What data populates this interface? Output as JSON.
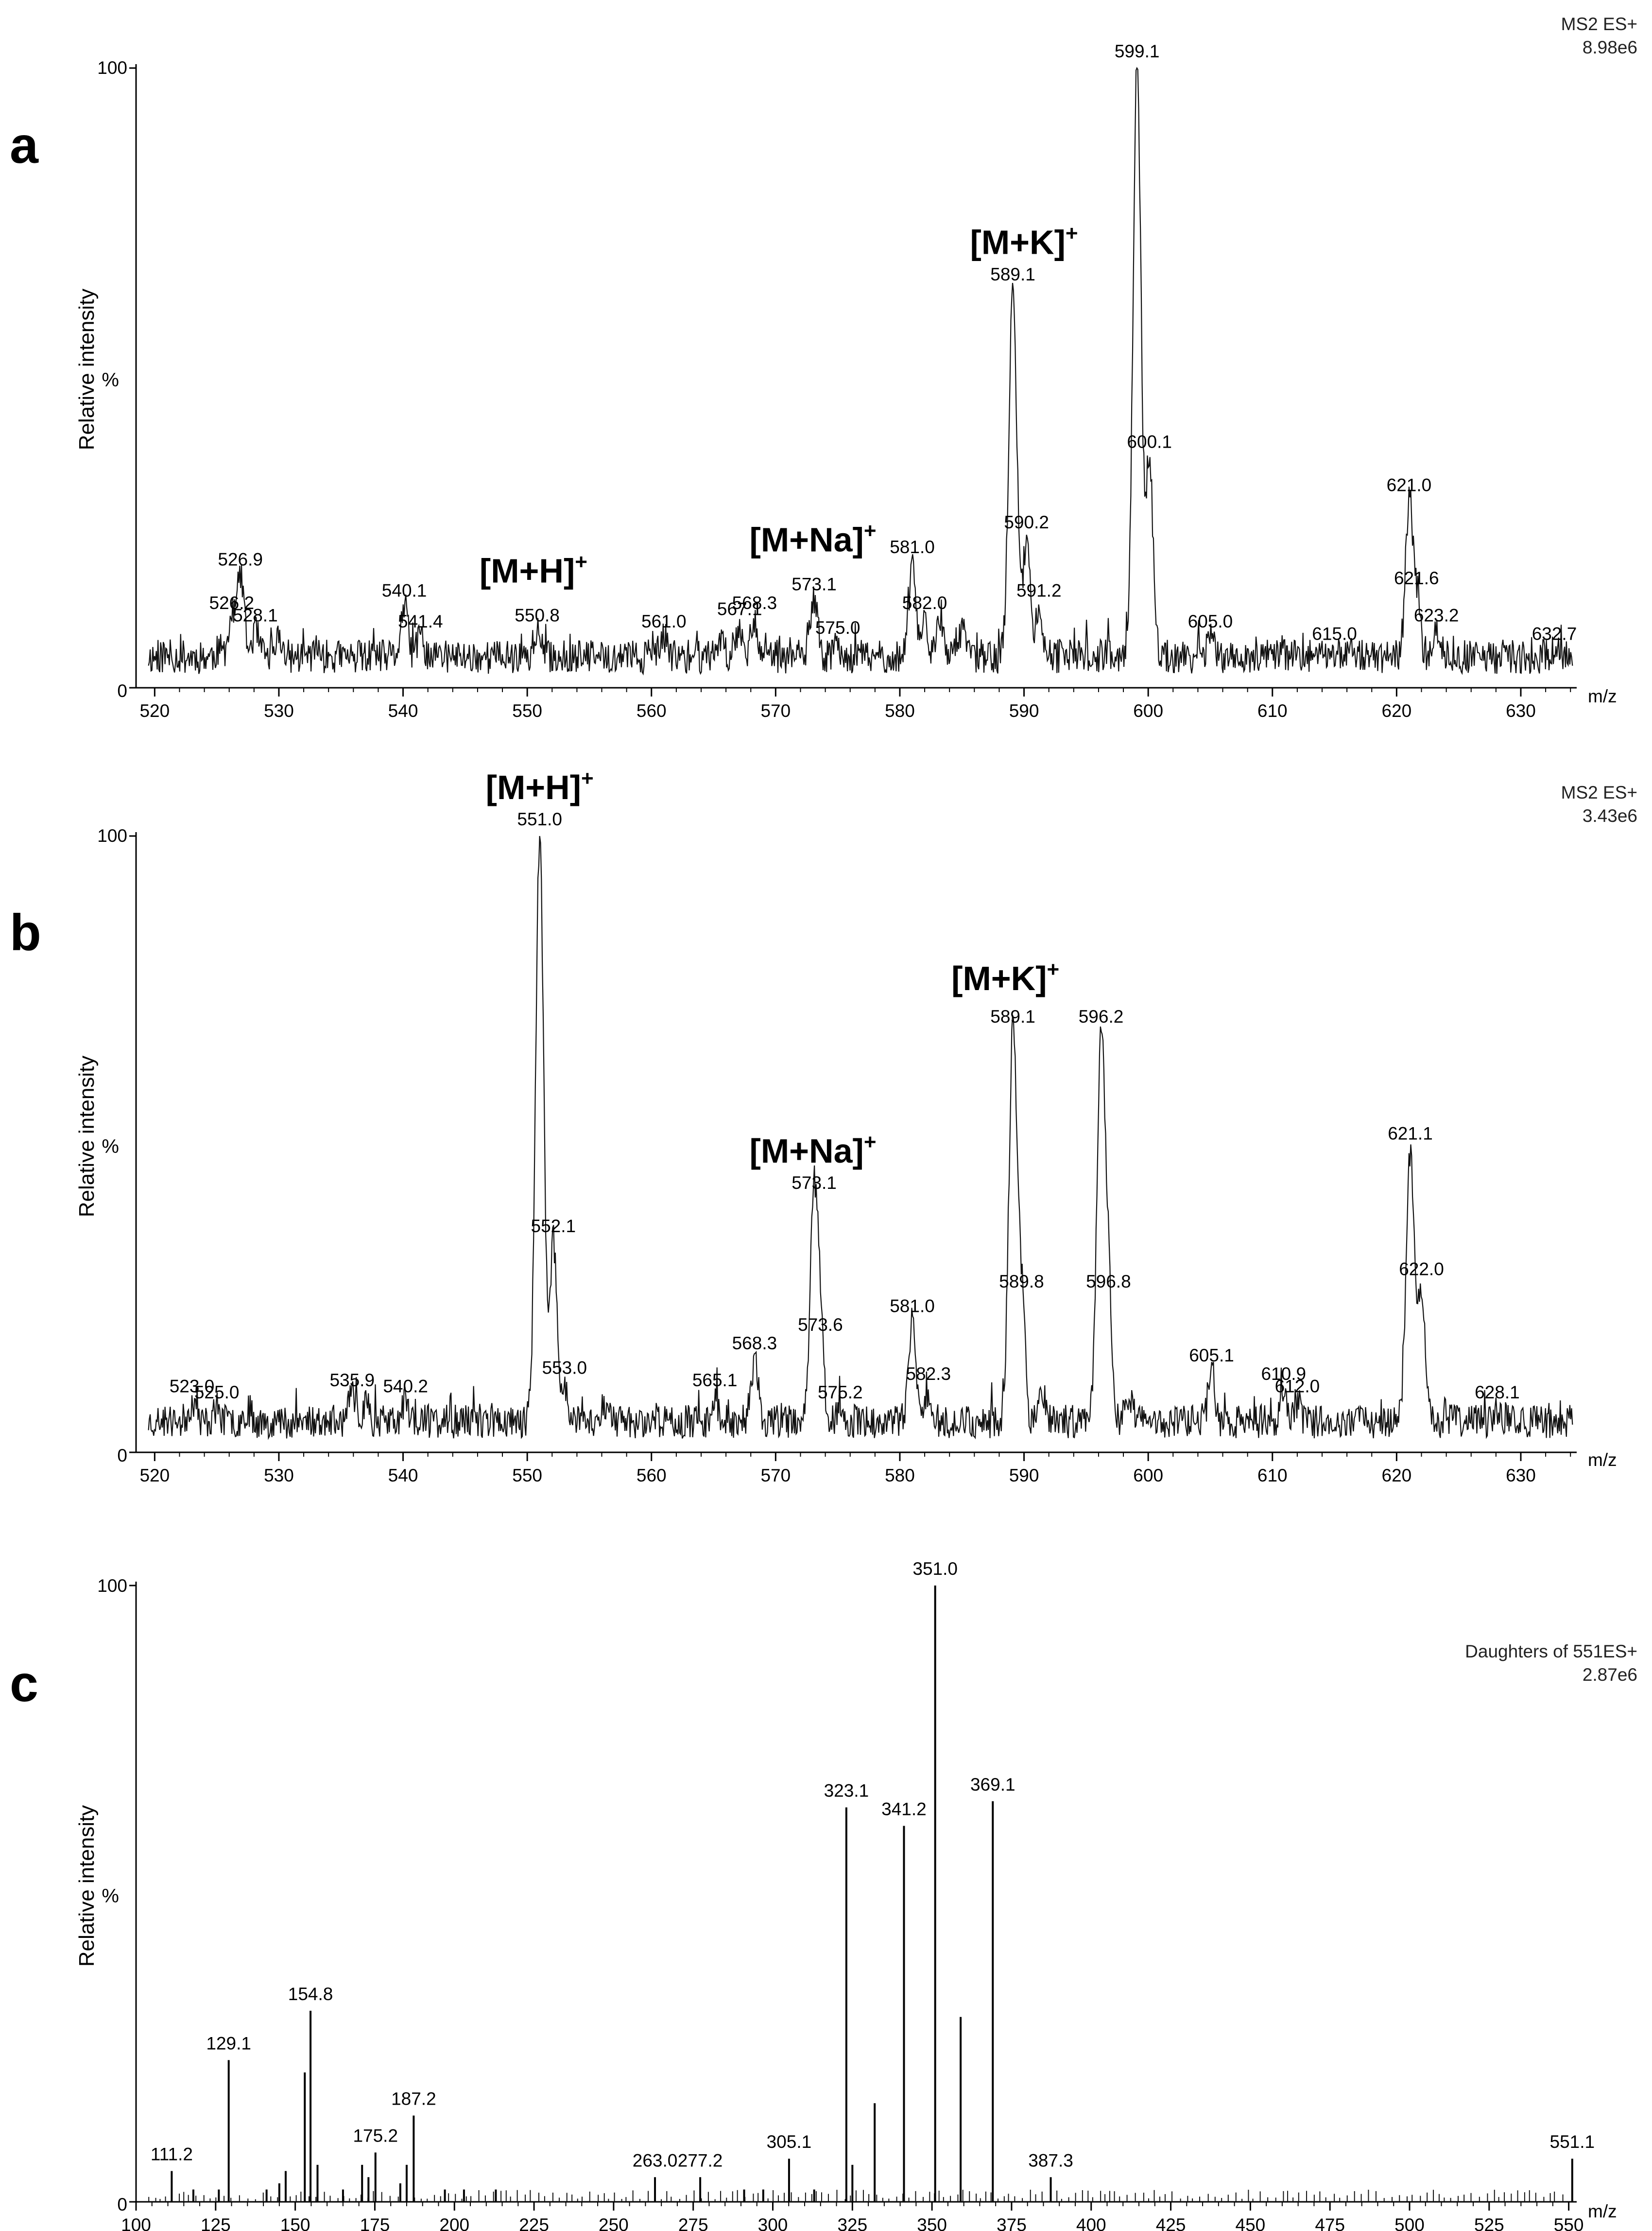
{
  "chart_data": [
    {
      "type": "line",
      "panel": "a",
      "ylabel": "Relative intensity",
      "y_unit": "%",
      "xlabel": "m/z",
      "header_line1": "MS2 ES+",
      "header_line2": "8.98e6",
      "xlim": [
        518.5,
        634.5
      ],
      "ylim": [
        0,
        100
      ],
      "y_ticks": [
        "0",
        "100"
      ],
      "x_ticks": [
        "520",
        "530",
        "540",
        "550",
        "560",
        "570",
        "580",
        "590",
        "600",
        "610",
        "620",
        "630"
      ],
      "baseline": 5,
      "peaks": [
        {
          "x": 525.2,
          "y": 6
        },
        {
          "x": 526.2,
          "y": 11,
          "label": "526.2"
        },
        {
          "x": 526.9,
          "y": 18,
          "label": "526.9"
        },
        {
          "x": 528.1,
          "y": 9,
          "label": "528.1"
        },
        {
          "x": 530.0,
          "y": 8
        },
        {
          "x": 533.0,
          "y": 6
        },
        {
          "x": 540.1,
          "y": 13,
          "label": "540.1"
        },
        {
          "x": 541.4,
          "y": 8,
          "label": "541.4"
        },
        {
          "x": 550.8,
          "y": 9,
          "label": "550.8"
        },
        {
          "x": 561.0,
          "y": 8,
          "label": "561.0"
        },
        {
          "x": 565.5,
          "y": 8
        },
        {
          "x": 567.1,
          "y": 10,
          "label": "567.1"
        },
        {
          "x": 568.3,
          "y": 11,
          "label": "568.3"
        },
        {
          "x": 573.1,
          "y": 14,
          "label": "573.1"
        },
        {
          "x": 575.0,
          "y": 7,
          "label": "575.0"
        },
        {
          "x": 581.0,
          "y": 20,
          "label": "581.0"
        },
        {
          "x": 582.0,
          "y": 11,
          "label": "582.0"
        },
        {
          "x": 583.2,
          "y": 10
        },
        {
          "x": 585.0,
          "y": 9
        },
        {
          "x": 589.1,
          "y": 64,
          "label": "589.1"
        },
        {
          "x": 590.2,
          "y": 24,
          "label": "590.2"
        },
        {
          "x": 591.2,
          "y": 13,
          "label": "591.2"
        },
        {
          "x": 599.1,
          "y": 100,
          "label": "599.1"
        },
        {
          "x": 600.1,
          "y": 37,
          "label": "600.1"
        },
        {
          "x": 605.0,
          "y": 8,
          "label": "605.0"
        },
        {
          "x": 615.0,
          "y": 6,
          "label": "615.0"
        },
        {
          "x": 616.5,
          "y": 6
        },
        {
          "x": 621.0,
          "y": 30,
          "label": "621.0"
        },
        {
          "x": 621.6,
          "y": 15,
          "label": "621.6"
        },
        {
          "x": 623.2,
          "y": 9,
          "label": "623.2"
        },
        {
          "x": 632.7,
          "y": 6,
          "label": "632.7"
        }
      ],
      "ion_annotations": [
        {
          "text": "[M+H]",
          "sup": "+",
          "x": 550.5,
          "y": 17
        },
        {
          "text": "[M+Na]",
          "sup": "+",
          "x": 573.0,
          "y": 22
        },
        {
          "text": "[M+K]",
          "sup": "+",
          "x": 590.0,
          "y": 70
        }
      ]
    },
    {
      "type": "line",
      "panel": "b",
      "ylabel": "Relative intensity",
      "y_unit": "%",
      "xlabel": "m/z",
      "header_line1": "MS2 ES+",
      "header_line2": "3.43e6",
      "xlim": [
        518.5,
        634.5
      ],
      "ylim": [
        0,
        100
      ],
      "y_ticks": [
        "0",
        "100"
      ],
      "x_ticks": [
        "520",
        "530",
        "540",
        "550",
        "560",
        "570",
        "580",
        "590",
        "600",
        "610",
        "620",
        "630"
      ],
      "baseline": 5,
      "peaks": [
        {
          "x": 523.0,
          "y": 8,
          "label": "523.0"
        },
        {
          "x": 525.0,
          "y": 7,
          "label": "525.0"
        },
        {
          "x": 527.5,
          "y": 7
        },
        {
          "x": 535.9,
          "y": 9,
          "label": "535.9"
        },
        {
          "x": 537.0,
          "y": 8
        },
        {
          "x": 540.2,
          "y": 8,
          "label": "540.2"
        },
        {
          "x": 551.0,
          "y": 100,
          "label": "551.0"
        },
        {
          "x": 552.1,
          "y": 34,
          "label": "552.1"
        },
        {
          "x": 553.0,
          "y": 11,
          "label": "553.0"
        },
        {
          "x": 556.2,
          "y": 8
        },
        {
          "x": 565.1,
          "y": 9,
          "label": "565.1"
        },
        {
          "x": 568.3,
          "y": 15,
          "label": "568.3"
        },
        {
          "x": 573.1,
          "y": 41,
          "label": "573.1"
        },
        {
          "x": 573.6,
          "y": 18,
          "label": "573.6"
        },
        {
          "x": 575.2,
          "y": 7,
          "label": "575.2"
        },
        {
          "x": 581.0,
          "y": 21,
          "label": "581.0"
        },
        {
          "x": 582.3,
          "y": 10,
          "label": "582.3"
        },
        {
          "x": 589.1,
          "y": 68,
          "label": "589.1"
        },
        {
          "x": 589.8,
          "y": 25,
          "label": "589.8"
        },
        {
          "x": 591.5,
          "y": 10
        },
        {
          "x": 596.2,
          "y": 68,
          "label": "596.2"
        },
        {
          "x": 596.8,
          "y": 25,
          "label": "596.8"
        },
        {
          "x": 598.5,
          "y": 9
        },
        {
          "x": 605.1,
          "y": 13,
          "label": "605.1"
        },
        {
          "x": 610.9,
          "y": 10,
          "label": "610.9"
        },
        {
          "x": 612.0,
          "y": 8,
          "label": "612.0"
        },
        {
          "x": 621.1,
          "y": 49,
          "label": "621.1"
        },
        {
          "x": 622.0,
          "y": 27,
          "label": "622.0"
        },
        {
          "x": 628.1,
          "y": 7,
          "label": "628.1"
        }
      ],
      "ion_annotations": [
        {
          "text": "[M+H]",
          "sup": "+",
          "x": 551.0,
          "y": 106
        },
        {
          "text": "[M+Na]",
          "sup": "+",
          "x": 573.0,
          "y": 47
        },
        {
          "text": "[M+K]",
          "sup": "+",
          "x": 588.5,
          "y": 75
        }
      ]
    },
    {
      "type": "bar",
      "panel": "c",
      "ylabel": "Relative intensity",
      "y_unit": "%",
      "xlabel": "m/z",
      "header_line1": "Daughters of 551ES+",
      "header_line2": "2.87e6",
      "xlim": [
        100,
        552.5
      ],
      "ylim": [
        0,
        100
      ],
      "y_ticks": [
        "0",
        "100"
      ],
      "x_ticks": [
        "100",
        "125",
        "150",
        "175",
        "200",
        "225",
        "250",
        "275",
        "300",
        "325",
        "350",
        "375",
        "400",
        "425",
        "450",
        "475",
        "500",
        "525",
        "550"
      ],
      "peaks": [
        {
          "x": 111.2,
          "y": 5,
          "label": "111.2"
        },
        {
          "x": 118.0,
          "y": 2
        },
        {
          "x": 126.0,
          "y": 2
        },
        {
          "x": 129.1,
          "y": 23,
          "label": "129.1"
        },
        {
          "x": 141.0,
          "y": 2
        },
        {
          "x": 145.0,
          "y": 3
        },
        {
          "x": 147.0,
          "y": 5
        },
        {
          "x": 153.0,
          "y": 21
        },
        {
          "x": 154.8,
          "y": 31,
          "label": "154.8"
        },
        {
          "x": 157.0,
          "y": 6
        },
        {
          "x": 165.0,
          "y": 2
        },
        {
          "x": 171.0,
          "y": 6
        },
        {
          "x": 173.0,
          "y": 4
        },
        {
          "x": 175.2,
          "y": 8,
          "label": "175.2"
        },
        {
          "x": 183.0,
          "y": 3
        },
        {
          "x": 185.0,
          "y": 6
        },
        {
          "x": 187.2,
          "y": 14,
          "label": "187.2"
        },
        {
          "x": 197.0,
          "y": 2
        },
        {
          "x": 203.0,
          "y": 2
        },
        {
          "x": 213.0,
          "y": 2
        },
        {
          "x": 263.0,
          "y": 4,
          "label": "263.0"
        },
        {
          "x": 277.2,
          "y": 4,
          "label": "277.2"
        },
        {
          "x": 291.0,
          "y": 2
        },
        {
          "x": 297.0,
          "y": 2
        },
        {
          "x": 305.1,
          "y": 7,
          "label": "305.1"
        },
        {
          "x": 313.0,
          "y": 2
        },
        {
          "x": 323.1,
          "y": 64,
          "label": "323.1"
        },
        {
          "x": 325.0,
          "y": 6
        },
        {
          "x": 332.0,
          "y": 16
        },
        {
          "x": 341.2,
          "y": 61,
          "label": "341.2"
        },
        {
          "x": 351.0,
          "y": 100,
          "label": "351.0"
        },
        {
          "x": 359.0,
          "y": 30
        },
        {
          "x": 369.1,
          "y": 65,
          "label": "369.1"
        },
        {
          "x": 387.3,
          "y": 4,
          "label": "387.3"
        },
        {
          "x": 551.1,
          "y": 7,
          "label": "551.1"
        }
      ]
    }
  ],
  "panel_letters": [
    "a",
    "b",
    "c"
  ]
}
